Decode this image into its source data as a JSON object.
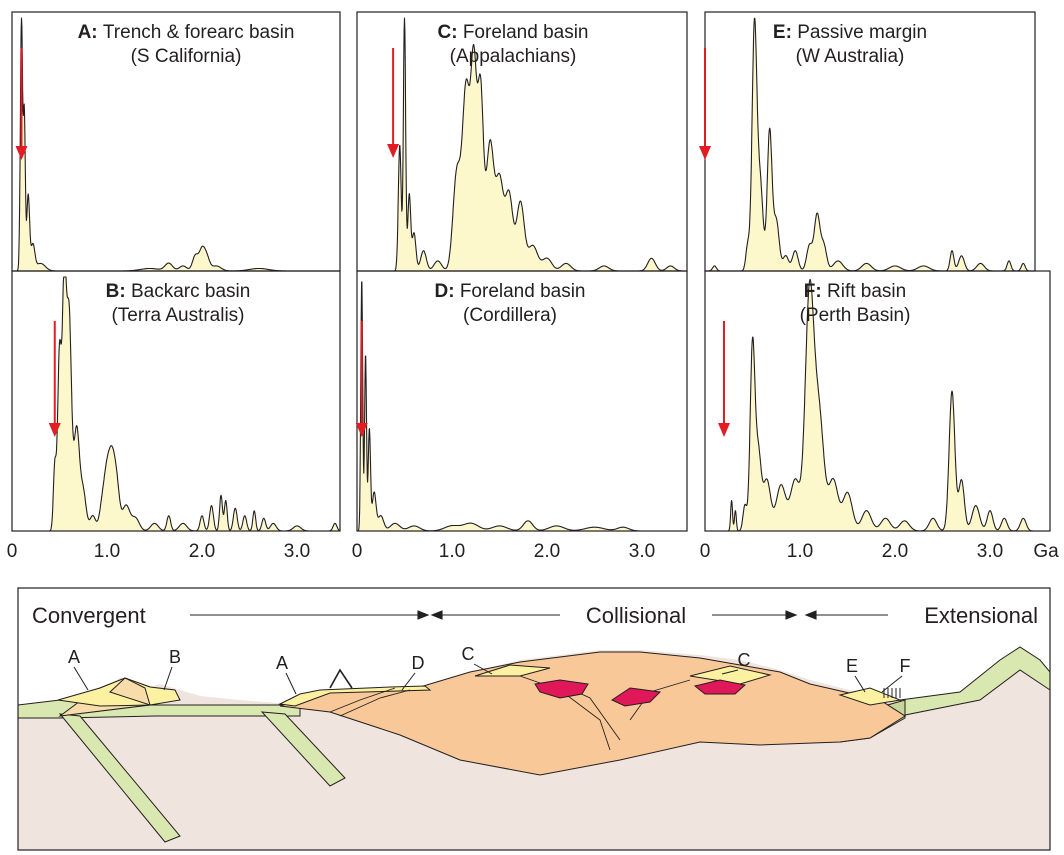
{
  "chart_data": [
    {
      "type": "area",
      "id": "A",
      "letter": "A:",
      "title": "Trench & forearc basin",
      "subtitle": "(S California)",
      "arrow_age": 0.1,
      "peaks": [
        [
          0.1,
          1.0,
          0.012
        ],
        [
          0.13,
          0.6,
          0.01
        ],
        [
          0.17,
          0.3,
          0.015
        ],
        [
          0.22,
          0.1,
          0.02
        ],
        [
          0.3,
          0.03,
          0.05
        ],
        [
          1.45,
          0.01,
          0.1
        ],
        [
          1.65,
          0.03,
          0.04
        ],
        [
          1.8,
          0.02,
          0.04
        ],
        [
          1.93,
          0.06,
          0.03
        ],
        [
          2.0,
          0.08,
          0.03
        ],
        [
          2.05,
          0.05,
          0.03
        ],
        [
          2.15,
          0.02,
          0.05
        ],
        [
          2.6,
          0.01,
          0.1
        ]
      ]
    },
    {
      "type": "area",
      "id": "B",
      "letter": "B:",
      "title": "Backarc basin",
      "subtitle": "(Terra Australis)",
      "arrow_age": 0.45,
      "peaks": [
        [
          0.45,
          0.25,
          0.015
        ],
        [
          0.5,
          0.7,
          0.02
        ],
        [
          0.55,
          0.95,
          0.02
        ],
        [
          0.6,
          0.85,
          0.025
        ],
        [
          0.68,
          0.4,
          0.03
        ],
        [
          0.75,
          0.15,
          0.03
        ],
        [
          0.85,
          0.06,
          0.03
        ],
        [
          0.95,
          0.1,
          0.03
        ],
        [
          1.0,
          0.2,
          0.03
        ],
        [
          1.05,
          0.24,
          0.03
        ],
        [
          1.1,
          0.18,
          0.03
        ],
        [
          1.2,
          0.1,
          0.04
        ],
        [
          1.3,
          0.05,
          0.04
        ],
        [
          1.5,
          0.03,
          0.04
        ],
        [
          1.65,
          0.06,
          0.02
        ],
        [
          1.8,
          0.03,
          0.04
        ],
        [
          2.0,
          0.06,
          0.02
        ],
        [
          2.1,
          0.1,
          0.02
        ],
        [
          2.2,
          0.14,
          0.015
        ],
        [
          2.25,
          0.12,
          0.015
        ],
        [
          2.35,
          0.09,
          0.02
        ],
        [
          2.45,
          0.06,
          0.02
        ],
        [
          2.55,
          0.08,
          0.015
        ],
        [
          2.65,
          0.05,
          0.02
        ],
        [
          2.75,
          0.03,
          0.03
        ],
        [
          3.0,
          0.02,
          0.04
        ],
        [
          3.4,
          0.03,
          0.02
        ]
      ]
    },
    {
      "type": "area",
      "id": "C",
      "letter": "C:",
      "title": "Foreland basin",
      "subtitle": "(Appalachians)",
      "arrow_age": 0.38,
      "peaks": [
        [
          0.45,
          0.5,
          0.015
        ],
        [
          0.5,
          1.0,
          0.012
        ],
        [
          0.55,
          0.3,
          0.015
        ],
        [
          0.6,
          0.15,
          0.02
        ],
        [
          0.7,
          0.08,
          0.03
        ],
        [
          0.85,
          0.04,
          0.04
        ],
        [
          1.05,
          0.38,
          0.04
        ],
        [
          1.15,
          0.72,
          0.04
        ],
        [
          1.23,
          0.75,
          0.03
        ],
        [
          1.3,
          0.7,
          0.03
        ],
        [
          1.4,
          0.5,
          0.04
        ],
        [
          1.5,
          0.35,
          0.04
        ],
        [
          1.6,
          0.3,
          0.04
        ],
        [
          1.72,
          0.27,
          0.04
        ],
        [
          1.85,
          0.1,
          0.05
        ],
        [
          2.0,
          0.05,
          0.05
        ],
        [
          2.2,
          0.03,
          0.05
        ],
        [
          2.6,
          0.02,
          0.05
        ],
        [
          3.1,
          0.05,
          0.04
        ],
        [
          3.3,
          0.02,
          0.04
        ]
      ]
    },
    {
      "type": "area",
      "id": "D",
      "letter": "D:",
      "title": "Foreland basin",
      "subtitle": "(Cordillera)",
      "arrow_age": 0.05,
      "peaks": [
        [
          0.05,
          1.0,
          0.01
        ],
        [
          0.09,
          0.7,
          0.01
        ],
        [
          0.13,
          0.4,
          0.012
        ],
        [
          0.18,
          0.15,
          0.02
        ],
        [
          0.25,
          0.06,
          0.03
        ],
        [
          0.4,
          0.03,
          0.05
        ],
        [
          0.6,
          0.02,
          0.06
        ],
        [
          1.0,
          0.02,
          0.08
        ],
        [
          1.2,
          0.03,
          0.08
        ],
        [
          1.5,
          0.02,
          0.08
        ],
        [
          1.8,
          0.04,
          0.05
        ],
        [
          2.1,
          0.02,
          0.08
        ],
        [
          2.5,
          0.015,
          0.1
        ],
        [
          2.8,
          0.015,
          0.06
        ]
      ]
    },
    {
      "type": "area",
      "id": "E",
      "letter": "E:",
      "title": "Passive margin",
      "subtitle": "(W Australia)",
      "arrow_age": 0.0,
      "peaks": [
        [
          0.1,
          0.02,
          0.02
        ],
        [
          0.45,
          0.1,
          0.02
        ],
        [
          0.52,
          0.95,
          0.025
        ],
        [
          0.58,
          0.35,
          0.03
        ],
        [
          0.68,
          0.55,
          0.025
        ],
        [
          0.75,
          0.2,
          0.03
        ],
        [
          0.85,
          0.06,
          0.03
        ],
        [
          0.95,
          0.08,
          0.03
        ],
        [
          1.1,
          0.1,
          0.03
        ],
        [
          1.18,
          0.22,
          0.03
        ],
        [
          1.25,
          0.1,
          0.03
        ],
        [
          1.4,
          0.04,
          0.05
        ],
        [
          1.7,
          0.03,
          0.05
        ],
        [
          2.0,
          0.02,
          0.06
        ],
        [
          2.3,
          0.02,
          0.06
        ],
        [
          2.6,
          0.08,
          0.02
        ],
        [
          2.7,
          0.06,
          0.03
        ],
        [
          2.9,
          0.03,
          0.04
        ],
        [
          3.2,
          0.04,
          0.02
        ],
        [
          3.35,
          0.03,
          0.02
        ]
      ]
    },
    {
      "type": "area",
      "id": "F",
      "letter": "F:",
      "title": "Rift basin",
      "subtitle": "(Perth Basin)",
      "arrow_age": 0.2,
      "peaks": [
        [
          0.28,
          0.12,
          0.01
        ],
        [
          0.32,
          0.08,
          0.01
        ],
        [
          0.42,
          0.1,
          0.02
        ],
        [
          0.5,
          0.72,
          0.025
        ],
        [
          0.56,
          0.3,
          0.03
        ],
        [
          0.65,
          0.2,
          0.04
        ],
        [
          0.8,
          0.18,
          0.05
        ],
        [
          0.95,
          0.2,
          0.05
        ],
        [
          1.1,
          0.92,
          0.045
        ],
        [
          1.2,
          0.45,
          0.05
        ],
        [
          1.35,
          0.2,
          0.05
        ],
        [
          1.5,
          0.15,
          0.05
        ],
        [
          1.7,
          0.08,
          0.05
        ],
        [
          1.9,
          0.05,
          0.05
        ],
        [
          2.1,
          0.04,
          0.05
        ],
        [
          2.4,
          0.05,
          0.04
        ],
        [
          2.6,
          0.55,
          0.03
        ],
        [
          2.7,
          0.2,
          0.03
        ],
        [
          2.85,
          0.1,
          0.04
        ],
        [
          3.0,
          0.08,
          0.03
        ],
        [
          3.15,
          0.05,
          0.03
        ],
        [
          3.35,
          0.05,
          0.03
        ]
      ]
    }
  ],
  "axes": {
    "xlim": [
      0,
      3.5
    ],
    "ticks": [
      {
        "v": 0,
        "label": "0"
      },
      {
        "v": 1,
        "label": "1.0"
      },
      {
        "v": 2,
        "label": "2.0"
      },
      {
        "v": 3,
        "label": "3.0"
      }
    ],
    "unit": "Ga"
  },
  "cross_section": {
    "headings": {
      "convergent": "Convergent",
      "collisional": "Collisional",
      "extensional": "Extensional"
    },
    "labels": [
      "A",
      "B",
      "A",
      "D",
      "C",
      "C",
      "E",
      "F"
    ]
  },
  "colors": {
    "curve_fill": "#fdf8cc",
    "arrow": "#e31b23",
    "crust": "#f8c898",
    "mantle": "#efe4de",
    "slab": "#d9e8b0",
    "sediment": "#fbf1a0",
    "magma": "#e0185a"
  }
}
